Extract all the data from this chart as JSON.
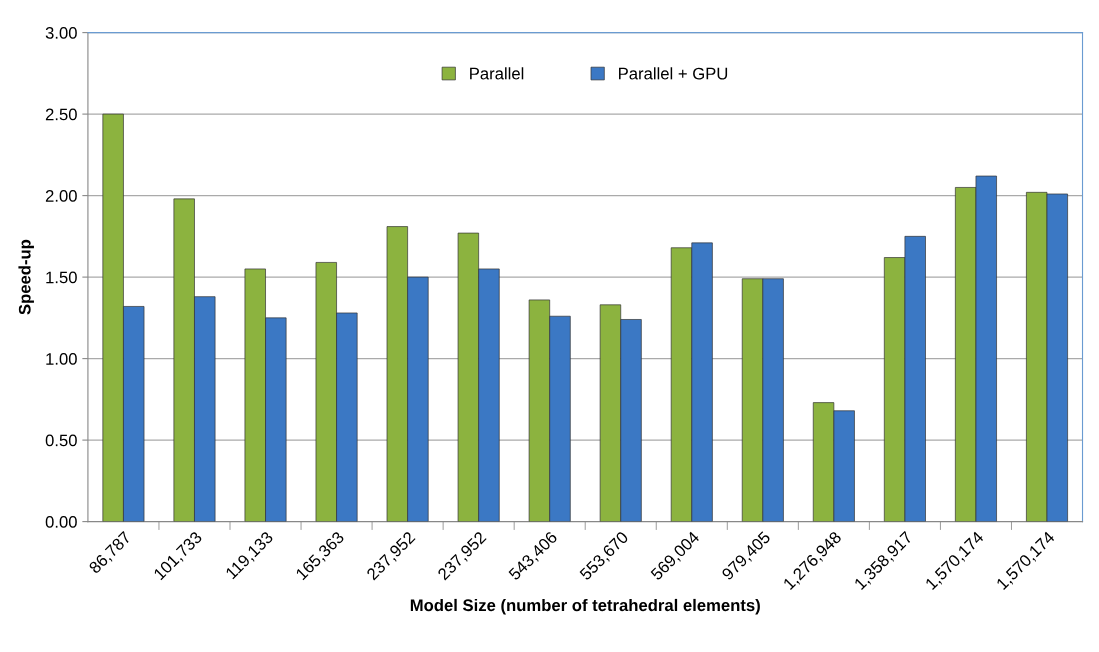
{
  "chart_data": {
    "type": "bar",
    "xlabel": "Model Size (number of tetrahedral elements)",
    "ylabel": "Speed-up",
    "categories": [
      "86,787",
      "101,733",
      "119,133",
      "165,363",
      "237,952",
      "237,952",
      "543,406",
      "553,670",
      "569,004",
      "979,405",
      "1,276,948",
      "1,358,917",
      "1,570,174",
      "1,570,174"
    ],
    "series": [
      {
        "name": "Parallel",
        "color": "#8cb33f",
        "values": [
          2.5,
          1.98,
          1.55,
          1.59,
          1.81,
          1.77,
          1.36,
          1.33,
          1.68,
          1.49,
          0.73,
          1.62,
          2.05,
          2.02
        ]
      },
      {
        "name": "Parallel + GPU",
        "color": "#3b78c4",
        "values": [
          1.32,
          1.38,
          1.25,
          1.28,
          1.5,
          1.55,
          1.26,
          1.24,
          1.71,
          1.49,
          0.68,
          1.75,
          2.12,
          2.01
        ]
      }
    ],
    "ylim": [
      0,
      3
    ],
    "yticks": [
      {
        "value": 0,
        "label": "0.00"
      },
      {
        "value": 0.5,
        "label": "0.50"
      },
      {
        "value": 1,
        "label": "1.00"
      },
      {
        "value": 1.5,
        "label": "1.50"
      },
      {
        "value": 2,
        "label": "2.00"
      },
      {
        "value": 2.5,
        "label": "2.50"
      },
      {
        "value": 3,
        "label": "3.00"
      }
    ],
    "grid": "y",
    "legend": "top"
  }
}
